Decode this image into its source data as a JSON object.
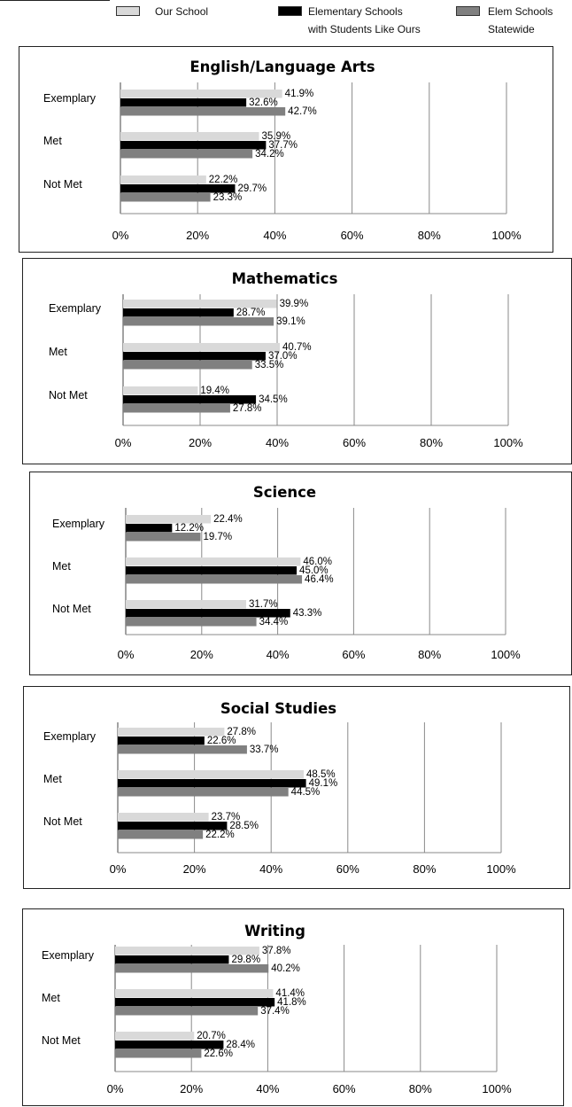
{
  "legend": {
    "items": [
      {
        "lines": [
          "Our School"
        ],
        "color": "#d9d9d9"
      },
      {
        "lines": [
          "Elementary Schools",
          "with Students Like Ours"
        ],
        "color": "#000000"
      },
      {
        "lines": [
          "Elem Schools",
          "Statewide"
        ],
        "color": "#808080"
      }
    ]
  },
  "chart_data": [
    {
      "type": "bar",
      "orientation": "horizontal",
      "title": "English/Language Arts",
      "categories": [
        "Exemplary",
        "Met",
        "Not Met"
      ],
      "series": [
        {
          "name": "Our School",
          "color": "#d9d9d9",
          "values": [
            41.9,
            35.9,
            22.2
          ],
          "labels": [
            "41.9%",
            "35.9%",
            "22.2%"
          ]
        },
        {
          "name": "Elementary Schools with Students Like Ours",
          "color": "#000000",
          "values": [
            32.6,
            37.7,
            29.7
          ],
          "labels": [
            "32.6%",
            "37.7%",
            "29.7%"
          ]
        },
        {
          "name": "Elem Schools Statewide",
          "color": "#808080",
          "values": [
            42.7,
            34.2,
            23.3
          ],
          "labels": [
            "42.7%",
            "34.2%",
            "23.3%"
          ]
        }
      ],
      "xlim": [
        0,
        100
      ],
      "xticks": [
        "0%",
        "20%",
        "40%",
        "60%",
        "80%",
        "100%"
      ],
      "grid": true
    },
    {
      "type": "bar",
      "orientation": "horizontal",
      "title": "Mathematics",
      "categories": [
        "Exemplary",
        "Met",
        "Not Met"
      ],
      "series": [
        {
          "name": "Our School",
          "color": "#d9d9d9",
          "values": [
            39.9,
            40.7,
            19.4
          ],
          "labels": [
            "39.9%",
            "40.7%",
            "19.4%"
          ]
        },
        {
          "name": "Elementary Schools with Students Like Ours",
          "color": "#000000",
          "values": [
            28.7,
            37.0,
            34.5
          ],
          "labels": [
            "28.7%",
            "37.0%",
            "34.5%"
          ]
        },
        {
          "name": "Elem Schools Statewide",
          "color": "#808080",
          "values": [
            39.1,
            33.5,
            27.8
          ],
          "labels": [
            "39.1%",
            "33.5%",
            "27.8%"
          ]
        }
      ],
      "xlim": [
        0,
        100
      ],
      "xticks": [
        "0%",
        "20%",
        "40%",
        "60%",
        "80%",
        "100%"
      ],
      "grid": true
    },
    {
      "type": "bar",
      "orientation": "horizontal",
      "title": "Science",
      "categories": [
        "Exemplary",
        "Met",
        "Not Met"
      ],
      "series": [
        {
          "name": "Our School",
          "color": "#d9d9d9",
          "values": [
            22.4,
            46.0,
            31.7
          ],
          "labels": [
            "22.4%",
            "46.0%",
            "31.7%"
          ]
        },
        {
          "name": "Elementary Schools with Students Like Ours",
          "color": "#000000",
          "values": [
            12.2,
            45.0,
            43.3
          ],
          "labels": [
            "12.2%",
            "45.0%",
            "43.3%"
          ]
        },
        {
          "name": "Elem Schools Statewide",
          "color": "#808080",
          "values": [
            19.7,
            46.4,
            34.4
          ],
          "labels": [
            "19.7%",
            "46.4%",
            "34.4%"
          ]
        }
      ],
      "xlim": [
        0,
        100
      ],
      "xticks": [
        "0%",
        "20%",
        "40%",
        "60%",
        "80%",
        "100%"
      ],
      "grid": true
    },
    {
      "type": "bar",
      "orientation": "horizontal",
      "title": "Social Studies",
      "categories": [
        "Exemplary",
        "Met",
        "Not Met"
      ],
      "series": [
        {
          "name": "Our School",
          "color": "#d9d9d9",
          "values": [
            27.8,
            48.5,
            23.7
          ],
          "labels": [
            "27.8%",
            "48.5%",
            "23.7%"
          ]
        },
        {
          "name": "Elementary Schools with Students Like Ours",
          "color": "#000000",
          "values": [
            22.6,
            49.1,
            28.5
          ],
          "labels": [
            "22.6%",
            "49.1%",
            "28.5%"
          ]
        },
        {
          "name": "Elem Schools Statewide",
          "color": "#808080",
          "values": [
            33.7,
            44.5,
            22.2
          ],
          "labels": [
            "33.7%",
            "44.5%",
            "22.2%"
          ]
        }
      ],
      "xlim": [
        0,
        100
      ],
      "xticks": [
        "0%",
        "20%",
        "40%",
        "60%",
        "80%",
        "100%"
      ],
      "grid": true
    },
    {
      "type": "bar",
      "orientation": "horizontal",
      "title": "Writing",
      "categories": [
        "Exemplary",
        "Met",
        "Not Met"
      ],
      "series": [
        {
          "name": "Our School",
          "color": "#d9d9d9",
          "values": [
            37.8,
            41.4,
            20.7
          ],
          "labels": [
            "37.8%",
            "41.4%",
            "20.7%"
          ]
        },
        {
          "name": "Elementary Schools with Students Like Ours",
          "color": "#000000",
          "values": [
            29.8,
            41.8,
            28.4
          ],
          "labels": [
            "29.8%",
            "41.8%",
            "28.4%"
          ]
        },
        {
          "name": "Elem Schools Statewide",
          "color": "#808080",
          "values": [
            40.2,
            37.4,
            22.6
          ],
          "labels": [
            "40.2%",
            "37.4%",
            "22.6%"
          ]
        }
      ],
      "xlim": [
        0,
        100
      ],
      "xticks": [
        "0%",
        "20%",
        "40%",
        "60%",
        "80%",
        "100%"
      ],
      "grid": true
    }
  ]
}
